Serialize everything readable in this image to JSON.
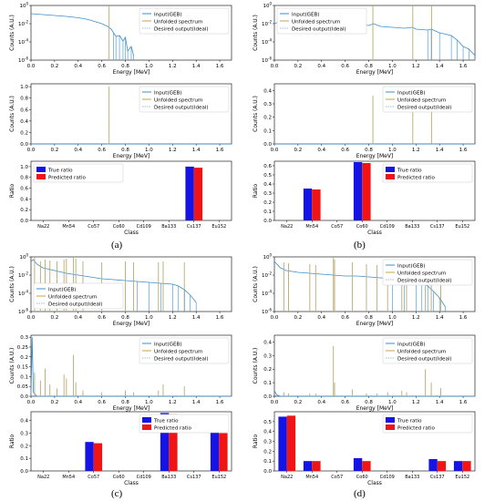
{
  "figure": {
    "captions": [
      "(a)",
      "(b)",
      "(c)",
      "(d)"
    ]
  },
  "colors": {
    "input": "#3b8fce",
    "unfolded": "#c8a040",
    "desired": "#9cc0d8",
    "true_bar": "#1414e6",
    "pred_bar": "#f01414"
  },
  "labels": {
    "counts_ylabel": "Counts (A.U.)",
    "energy_xlabel": "Energy [MeV]",
    "ratio_ylabel": "Ratio",
    "class_xlabel": "Class",
    "legend_input": "Input(GEB)",
    "legend_unfolded": "Unfolded spectrum",
    "legend_desired": "Desired output(Ideal)",
    "legend_true": "True ratio",
    "legend_pred": "Predicted ratio"
  },
  "chart_data": [
    {
      "panel": "a",
      "type": "line",
      "subplot": "spectrum-log",
      "yscale": "log",
      "xlim": [
        0,
        1.7
      ],
      "xticks": [
        0.0,
        0.2,
        0.4,
        0.6,
        0.8,
        1.0,
        1.2,
        1.4,
        1.6
      ],
      "ylim_exp": [
        -6,
        0
      ],
      "yticks_exp": [
        0,
        -2,
        -4,
        -6
      ],
      "legend_position": "upper right",
      "series": [
        {
          "name": "Input(GEB)",
          "x": [
            0.0,
            0.05,
            0.1,
            0.2,
            0.3,
            0.4,
            0.45,
            0.5,
            0.55,
            0.6,
            0.65,
            0.68,
            0.7,
            0.72,
            0.75,
            0.78,
            0.8,
            0.82,
            0.85,
            0.87
          ],
          "y_exp": [
            -0.9,
            -0.95,
            -1.0,
            -1.1,
            -1.2,
            -1.35,
            -1.45,
            -1.6,
            -1.8,
            -2.0,
            -2.3,
            -2.6,
            -3.0,
            -3.4,
            -3.3,
            -3.9,
            -3.5,
            -5.0,
            -4.5,
            -5.5
          ]
        },
        {
          "name": "Unfolded spectrum",
          "spikes_x": [
            0.662
          ],
          "spikes_y_exp": [
            0
          ]
        },
        {
          "name": "Desired output(Ideal)",
          "spikes_x": [
            0.662
          ],
          "spikes_y_exp": [
            0
          ]
        }
      ]
    },
    {
      "panel": "a",
      "type": "line",
      "subplot": "spectrum-linear",
      "xlim": [
        0,
        1.7
      ],
      "xticks": [
        0.0,
        0.2,
        0.4,
        0.6,
        0.8,
        1.0,
        1.2,
        1.4,
        1.6
      ],
      "ylim": [
        0,
        1.05
      ],
      "yticks": [
        0.0,
        0.2,
        0.4,
        0.6,
        0.8,
        1.0
      ],
      "legend_position": "upper right",
      "series": [
        {
          "name": "Input(GEB)",
          "x": [
            0.0,
            1.7
          ],
          "y": [
            0.0,
            0.0
          ]
        },
        {
          "name": "Unfolded spectrum",
          "spikes_x": [
            0.662
          ],
          "spikes_y": [
            1.0
          ]
        },
        {
          "name": "Desired output(Ideal)",
          "spikes_x": [
            0.662
          ],
          "spikes_y": [
            1.0
          ]
        }
      ]
    },
    {
      "panel": "a",
      "type": "bar",
      "subplot": "ratio",
      "categories": [
        "Na22",
        "Mn54",
        "Co57",
        "Co60",
        "Cd109",
        "Ba133",
        "Cs137",
        "Eu152"
      ],
      "ylim": [
        0,
        1.1
      ],
      "yticks": [
        0.0,
        0.2,
        0.4,
        0.6,
        0.8,
        1.0
      ],
      "legend_position": "upper left",
      "series": [
        {
          "name": "True ratio",
          "values": [
            0,
            0,
            0,
            0,
            0,
            0,
            1.0,
            0
          ]
        },
        {
          "name": "Predicted ratio",
          "values": [
            0,
            0,
            0,
            0,
            0,
            0,
            0.98,
            0
          ]
        }
      ]
    },
    {
      "panel": "b",
      "type": "line",
      "subplot": "spectrum-log",
      "yscale": "log",
      "xlim": [
        0,
        1.7
      ],
      "xticks": [
        0.0,
        0.2,
        0.4,
        0.6,
        0.8,
        1.0,
        1.2,
        1.4,
        1.6
      ],
      "ylim_exp": [
        -6,
        0
      ],
      "yticks_exp": [
        0,
        -2,
        -4,
        -6
      ],
      "legend_position": "upper left",
      "series": [
        {
          "name": "Input(GEB)",
          "x": [
            0.0,
            0.1,
            0.2,
            0.3,
            0.4,
            0.5,
            0.6,
            0.7,
            0.8,
            0.84,
            0.9,
            1.0,
            1.1,
            1.17,
            1.2,
            1.3,
            1.33,
            1.4,
            1.5,
            1.55,
            1.6,
            1.65,
            1.7
          ],
          "y_exp": [
            -2.0,
            -1.5,
            -1.6,
            -1.7,
            -1.8,
            -1.9,
            -2.0,
            -2.1,
            -2.2,
            -2.0,
            -2.3,
            -2.4,
            -2.5,
            -2.4,
            -2.6,
            -2.7,
            -2.6,
            -3.0,
            -3.3,
            -3.8,
            -4.5,
            -4.8,
            -5.5
          ]
        },
        {
          "name": "Unfolded spectrum",
          "spikes_x": [
            0.835,
            1.173,
            1.332
          ],
          "spikes_y_exp": [
            0,
            0,
            0
          ]
        },
        {
          "name": "Desired output(Ideal)",
          "spikes_x": [
            0.835,
            1.173,
            1.332
          ],
          "spikes_y_exp": [
            0,
            0,
            0
          ]
        }
      ]
    },
    {
      "panel": "b",
      "type": "line",
      "subplot": "spectrum-linear",
      "xlim": [
        0,
        1.7
      ],
      "xticks": [
        0.0,
        0.2,
        0.4,
        0.6,
        0.8,
        1.0,
        1.2,
        1.4,
        1.6
      ],
      "ylim": [
        0,
        0.45
      ],
      "yticks": [
        0.0,
        0.1,
        0.2,
        0.3,
        0.4
      ],
      "legend_position": "upper right",
      "series": [
        {
          "name": "Input(GEB)",
          "x": [
            0.0,
            1.7
          ],
          "y": [
            0.0,
            0.0
          ]
        },
        {
          "name": "Unfolded spectrum",
          "spikes_x": [
            0.835,
            1.173,
            1.332
          ],
          "spikes_y": [
            0.36,
            0.31,
            0.32
          ]
        },
        {
          "name": "Desired output(Ideal)",
          "spikes_x": [
            0.835,
            1.173,
            1.332
          ],
          "spikes_y": [
            0.36,
            0.31,
            0.32
          ]
        }
      ]
    },
    {
      "panel": "b",
      "type": "bar",
      "subplot": "ratio",
      "categories": [
        "Na22",
        "Mn54",
        "Co57",
        "Co60",
        "Cd109",
        "Ba133",
        "Cs137",
        "Eu152"
      ],
      "ylim": [
        0,
        0.65
      ],
      "yticks": [
        0.0,
        0.1,
        0.2,
        0.3,
        0.4,
        0.5,
        0.6
      ],
      "legend_position": "upper right",
      "series": [
        {
          "name": "True ratio",
          "values": [
            0,
            0.35,
            0,
            0.64,
            0,
            0,
            0,
            0
          ]
        },
        {
          "name": "Predicted ratio",
          "values": [
            0,
            0.34,
            0,
            0.63,
            0,
            0,
            0,
            0
          ]
        }
      ]
    },
    {
      "panel": "c",
      "type": "line",
      "subplot": "spectrum-log",
      "yscale": "log",
      "xlim": [
        0,
        1.7
      ],
      "xticks": [
        0.0,
        0.2,
        0.4,
        0.6,
        0.8,
        1.0,
        1.2,
        1.4,
        1.6
      ],
      "ylim_exp": [
        -6,
        0
      ],
      "yticks_exp": [
        0,
        -2,
        -4,
        -6
      ],
      "legend_position": "lower left",
      "series": [
        {
          "name": "Input(GEB)",
          "x": [
            0.0,
            0.02,
            0.05,
            0.1,
            0.2,
            0.3,
            0.4,
            0.5,
            0.6,
            0.7,
            0.8,
            0.9,
            1.0,
            1.1,
            1.2,
            1.25,
            1.3,
            1.35,
            1.4
          ],
          "y_exp": [
            -0.5,
            -0.3,
            -0.8,
            -1.2,
            -1.5,
            -1.8,
            -2.0,
            -2.2,
            -2.4,
            -2.5,
            -2.6,
            -2.7,
            -2.8,
            -2.9,
            -3.0,
            -3.2,
            -3.6,
            -4.2,
            -5.0
          ]
        },
        {
          "name": "Unfolded spectrum",
          "spikes_x": [
            0.03,
            0.08,
            0.12,
            0.16,
            0.22,
            0.28,
            0.3,
            0.36,
            0.38,
            0.44,
            0.6,
            0.8,
            0.87,
            1.08,
            1.12,
            1.3
          ],
          "spikes_y_exp": [
            0,
            -0.5,
            -0.3,
            -0.4,
            -0.5,
            -0.3,
            -0.2,
            0,
            -0.2,
            -0.5,
            -0.6,
            -0.5,
            -0.6,
            -0.6,
            -0.5,
            -0.6
          ]
        },
        {
          "name": "Desired output(Ideal)",
          "spikes_x": [
            0.03,
            0.08,
            0.12,
            0.16,
            0.22,
            0.28,
            0.3,
            0.36,
            0.38,
            0.44,
            0.6,
            0.8,
            0.87,
            1.08,
            1.12,
            1.3
          ],
          "spikes_y_exp": [
            0,
            -0.5,
            -0.3,
            -0.4,
            -0.5,
            -0.3,
            -0.2,
            0,
            -0.2,
            -0.5,
            -0.6,
            -0.5,
            -0.6,
            -0.6,
            -0.5,
            -0.6
          ]
        }
      ]
    },
    {
      "panel": "c",
      "type": "line",
      "subplot": "spectrum-linear",
      "xlim": [
        0,
        1.7
      ],
      "xticks": [
        0.0,
        0.2,
        0.4,
        0.6,
        0.8,
        1.0,
        1.2,
        1.4,
        1.6
      ],
      "ylim": [
        0,
        0.31
      ],
      "yticks": [
        0.0,
        0.05,
        0.1,
        0.15,
        0.2,
        0.25,
        0.3
      ],
      "legend_position": "upper right",
      "series": [
        {
          "name": "Input(GEB)",
          "x": [
            0.0,
            0.01,
            0.02,
            0.05,
            1.7
          ],
          "y": [
            0.0,
            0.3,
            0.02,
            0.0,
            0.0
          ]
        },
        {
          "name": "Unfolded spectrum",
          "spikes_x": [
            0.03,
            0.08,
            0.12,
            0.16,
            0.22,
            0.28,
            0.3,
            0.36,
            0.38,
            0.44,
            0.6,
            0.8,
            0.87,
            1.08,
            1.12,
            1.3
          ],
          "spikes_y": [
            0.12,
            0.08,
            0.14,
            0.06,
            0.04,
            0.11,
            0.09,
            0.21,
            0.07,
            0.03,
            0.02,
            0.03,
            0.02,
            0.03,
            0.06,
            0.05
          ]
        },
        {
          "name": "Desired output(Ideal)",
          "spikes_x": [
            0.03,
            0.08,
            0.12,
            0.16,
            0.22,
            0.28,
            0.3,
            0.36,
            0.38,
            0.44,
            0.6,
            0.8,
            0.87,
            1.08,
            1.12,
            1.3
          ],
          "spikes_y": [
            0.12,
            0.08,
            0.14,
            0.06,
            0.04,
            0.11,
            0.09,
            0.21,
            0.07,
            0.03,
            0.02,
            0.03,
            0.02,
            0.03,
            0.06,
            0.05
          ]
        }
      ]
    },
    {
      "panel": "c",
      "type": "bar",
      "subplot": "ratio",
      "categories": [
        "Na22",
        "Mn54",
        "Co57",
        "Co60",
        "Cd109",
        "Ba133",
        "Cs137",
        "Eu152"
      ],
      "ylim": [
        0,
        0.47
      ],
      "yticks": [
        0.0,
        0.1,
        0.2,
        0.3,
        0.4
      ],
      "legend_position": "upper right",
      "series": [
        {
          "name": "True ratio",
          "values": [
            0,
            0,
            0.23,
            0,
            0,
            0.46,
            0,
            0.31
          ]
        },
        {
          "name": "Predicted ratio",
          "values": [
            0,
            0,
            0.22,
            0,
            0,
            0.45,
            0,
            0.3
          ]
        }
      ]
    },
    {
      "panel": "d",
      "type": "line",
      "subplot": "spectrum-log",
      "yscale": "log",
      "xlim": [
        0,
        1.7
      ],
      "xticks": [
        0.0,
        0.2,
        0.4,
        0.6,
        0.8,
        1.0,
        1.2,
        1.4,
        1.6
      ],
      "ylim_exp": [
        -6,
        0
      ],
      "yticks_exp": [
        0,
        -2,
        -4,
        -6
      ],
      "legend_position": "upper right",
      "series": [
        {
          "name": "Input(GEB)",
          "x": [
            0.0,
            0.05,
            0.1,
            0.2,
            0.3,
            0.4,
            0.5,
            0.6,
            0.7,
            0.8,
            0.9,
            1.0,
            1.1,
            1.2,
            1.25,
            1.3,
            1.35,
            1.4,
            1.45
          ],
          "y_exp": [
            -0.5,
            -1.2,
            -1.5,
            -1.7,
            -1.8,
            -1.9,
            -2.0,
            -2.1,
            -2.1,
            -2.2,
            -2.3,
            -2.4,
            -2.4,
            -2.6,
            -2.8,
            -3.2,
            -3.8,
            -4.5,
            -5.5
          ]
        },
        {
          "name": "Unfolded spectrum",
          "spikes_x": [
            0.08,
            0.12,
            0.3,
            0.35,
            0.5,
            0.51,
            0.66,
            0.78,
            0.87,
            0.96,
            1.08,
            1.12,
            1.28,
            1.33,
            1.41
          ],
          "spikes_y_exp": [
            -0.6,
            -0.7,
            -0.8,
            -0.9,
            0,
            -0.3,
            -0.6,
            -0.8,
            -0.9,
            -0.8,
            -0.7,
            -0.8,
            -0.4,
            -0.5,
            -0.5
          ]
        },
        {
          "name": "Desired output(Ideal)",
          "spikes_x": [
            0.08,
            0.12,
            0.3,
            0.35,
            0.5,
            0.51,
            0.66,
            0.78,
            0.87,
            0.96,
            1.08,
            1.12,
            1.28,
            1.33,
            1.41
          ],
          "spikes_y_exp": [
            -0.6,
            -0.7,
            -0.8,
            -0.9,
            0,
            -0.3,
            -0.6,
            -0.8,
            -0.9,
            -0.8,
            -0.7,
            -0.8,
            -0.4,
            -0.5,
            -0.5
          ]
        }
      ]
    },
    {
      "panel": "d",
      "type": "line",
      "subplot": "spectrum-linear",
      "xlim": [
        0,
        1.7
      ],
      "xticks": [
        0.0,
        0.2,
        0.4,
        0.6,
        0.8,
        1.0,
        1.2,
        1.4,
        1.6
      ],
      "ylim": [
        0,
        0.45
      ],
      "yticks": [
        0.0,
        0.1,
        0.2,
        0.3,
        0.4
      ],
      "legend_position": "upper right",
      "series": [
        {
          "name": "Input(GEB)",
          "x": [
            0.0,
            0.02,
            0.05,
            1.7
          ],
          "y": [
            0.04,
            0.01,
            0.0,
            0.0
          ]
        },
        {
          "name": "Unfolded spectrum",
          "spikes_x": [
            0.08,
            0.12,
            0.3,
            0.35,
            0.5,
            0.51,
            0.66,
            0.78,
            0.87,
            0.96,
            1.08,
            1.12,
            1.28,
            1.33,
            1.41
          ],
          "spikes_y": [
            0.03,
            0.02,
            0.02,
            0.02,
            0.37,
            0.1,
            0.05,
            0.02,
            0.02,
            0.03,
            0.04,
            0.03,
            0.2,
            0.1,
            0.06
          ]
        },
        {
          "name": "Desired output(Ideal)",
          "spikes_x": [
            0.08,
            0.12,
            0.3,
            0.35,
            0.5,
            0.51,
            0.66,
            0.78,
            0.87,
            0.96,
            1.08,
            1.12,
            1.28,
            1.33,
            1.41
          ],
          "spikes_y": [
            0.03,
            0.02,
            0.02,
            0.02,
            0.37,
            0.1,
            0.05,
            0.02,
            0.02,
            0.03,
            0.04,
            0.03,
            0.2,
            0.1,
            0.06
          ]
        }
      ]
    },
    {
      "panel": "d",
      "type": "bar",
      "subplot": "ratio",
      "categories": [
        "Na22",
        "Mn54",
        "Co57",
        "Co60",
        "Cd109",
        "Ba133",
        "Cs137",
        "Eu152"
      ],
      "ylim": [
        0,
        0.6
      ],
      "yticks": [
        0.0,
        0.1,
        0.2,
        0.3,
        0.4,
        0.5
      ],
      "legend_position": "upper right",
      "series": [
        {
          "name": "True ratio",
          "values": [
            0.55,
            0.1,
            0,
            0.13,
            0,
            0,
            0.12,
            0.1
          ]
        },
        {
          "name": "Predicted ratio",
          "values": [
            0.56,
            0.1,
            0,
            0.1,
            0,
            0,
            0.1,
            0.1
          ]
        }
      ]
    }
  ]
}
